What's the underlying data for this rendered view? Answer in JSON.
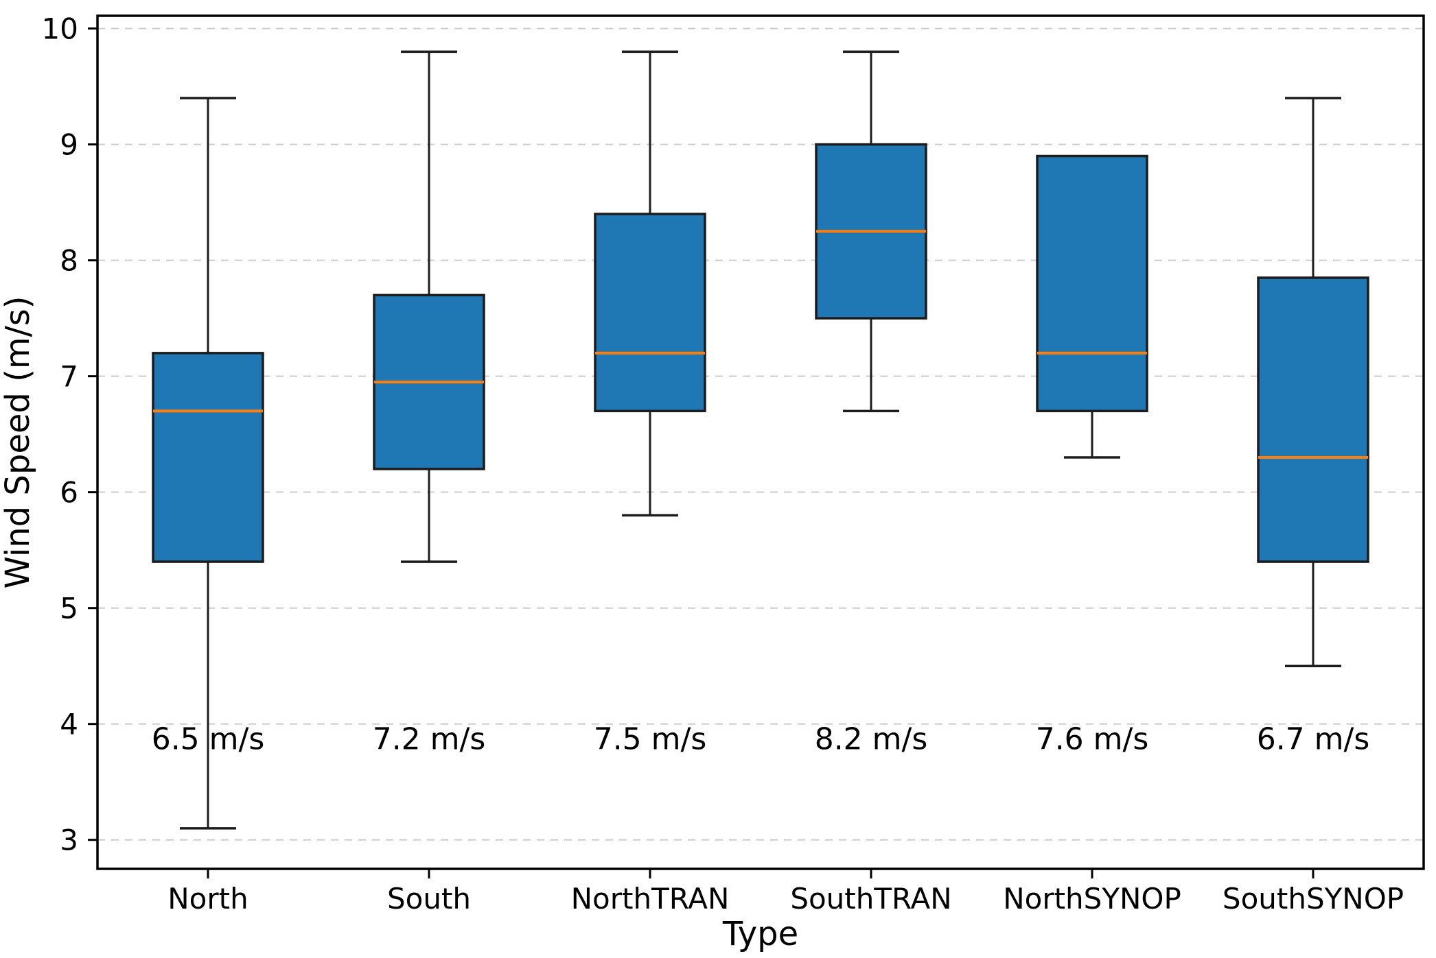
{
  "figure": {
    "title": "",
    "ylabel": "Wind Speed (m/s)",
    "xlabel": "Type",
    "background": "#ffffff"
  },
  "chart_data": {
    "type": "boxplot",
    "title": "",
    "xlabel": "Type",
    "ylabel": "Wind Speed (m/s)",
    "categories": [
      "North",
      "South",
      "NorthTRAN",
      "SouthTRAN",
      "NorthSYNOP",
      "SouthSYNOP"
    ],
    "yticks": [
      3,
      4,
      5,
      6,
      7,
      8,
      9,
      10
    ],
    "ylim": [
      2.75,
      10.11
    ],
    "grid": {
      "axis": "y",
      "style": "dashed",
      "color": "#cdcdcd"
    },
    "legend": "none",
    "series": [
      {
        "name": "North",
        "whislo": 3.1,
        "q1": 5.4,
        "med": 6.7,
        "q3": 7.2,
        "whishi": 9.4,
        "mean_label": "6.5 m/s"
      },
      {
        "name": "South",
        "whislo": 5.4,
        "q1": 6.2,
        "med": 6.95,
        "q3": 7.7,
        "whishi": 9.8,
        "mean_label": "7.2 m/s"
      },
      {
        "name": "NorthTRAN",
        "whislo": 5.8,
        "q1": 6.7,
        "med": 7.2,
        "q3": 8.4,
        "whishi": 9.8,
        "mean_label": "7.5 m/s"
      },
      {
        "name": "SouthTRAN",
        "whislo": 6.7,
        "q1": 7.5,
        "med": 8.25,
        "q3": 9.0,
        "whishi": 9.8,
        "mean_label": "8.2 m/s"
      },
      {
        "name": "NorthSYNOP",
        "whislo": 6.3,
        "q1": 6.7,
        "med": 7.2,
        "q3": 8.9,
        "whishi": 8.9,
        "mean_label": "7.6 m/s"
      },
      {
        "name": "SouthSYNOP",
        "whislo": 4.5,
        "q1": 5.4,
        "med": 6.3,
        "q3": 7.85,
        "whishi": 9.4,
        "mean_label": "6.7 m/s"
      }
    ],
    "annotation_y": 3.87,
    "colors": {
      "box_fill": "#1f77b4",
      "box_edge": "#1c1c1c",
      "median": "#ff7f0e",
      "whisker": "#1c1c1c",
      "annotation": "#0000ff",
      "tick_label": "#000000",
      "spine": "#000000"
    }
  }
}
